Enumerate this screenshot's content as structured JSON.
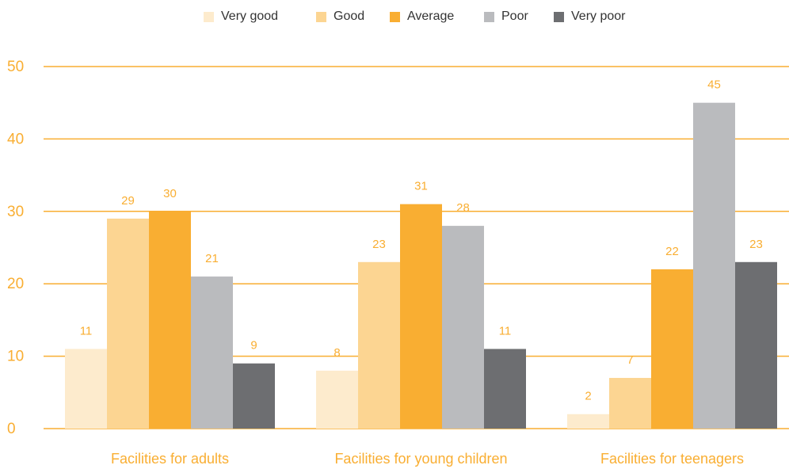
{
  "chart_data": {
    "type": "bar",
    "title": "",
    "xlabel": "",
    "ylabel": "",
    "ylim": [
      0,
      50
    ],
    "yticks": [
      0,
      10,
      20,
      30,
      40,
      50
    ],
    "grid": true,
    "legend_position": "top",
    "categories": [
      "Facilities for adults",
      "Facilities for young children",
      "Facilities for teenagers"
    ],
    "series": [
      {
        "name": "Very good",
        "color": "#FDEBCD",
        "values": [
          11,
          8,
          2
        ]
      },
      {
        "name": "Good",
        "color": "#FCD592",
        "values": [
          29,
          23,
          7
        ]
      },
      {
        "name": "Average",
        "color": "#F9AE32",
        "values": [
          30,
          31,
          22
        ]
      },
      {
        "name": "Poor",
        "color": "#BABBBE",
        "values": [
          21,
          28,
          45
        ]
      },
      {
        "name": "Very poor",
        "color": "#6D6E71",
        "values": [
          9,
          11,
          23
        ]
      }
    ],
    "colors": {
      "axis_text": "#F9AE32",
      "gridline": "#F9AE32",
      "legend_text": "#333333"
    }
  }
}
